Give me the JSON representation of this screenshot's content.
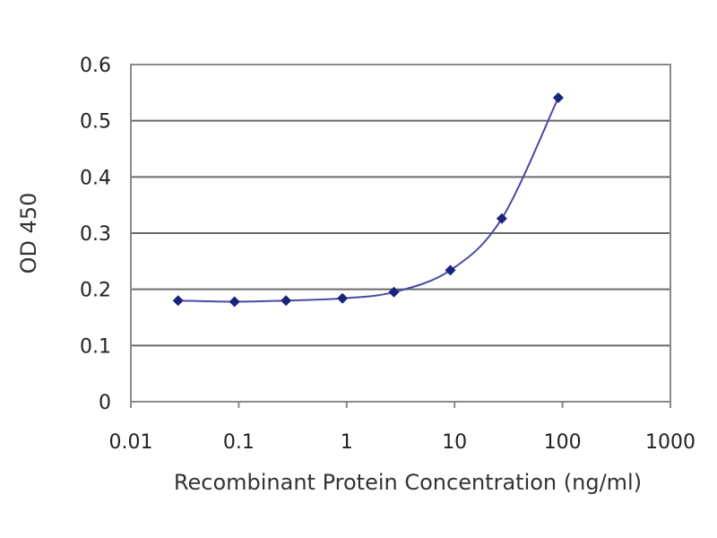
{
  "chart_data": {
    "type": "line",
    "title": "",
    "xlabel": "Recombinant Protein Concentration (ng/ml)",
    "ylabel": "OD 450",
    "x_scale": "log",
    "xlim": [
      0.01,
      1000
    ],
    "ylim": [
      0,
      0.6
    ],
    "x_ticks": [
      "0.01",
      "0.1",
      "1",
      "10",
      "100",
      "1000"
    ],
    "y_ticks": [
      "0",
      "0.1",
      "0.2",
      "0.3",
      "0.4",
      "0.5",
      "0.6"
    ],
    "grid": "horizontal",
    "legend": "none",
    "series": [
      {
        "x": [
          0.0274,
          0.0914,
          0.274,
          0.914,
          2.74,
          9.14,
          27.4,
          91.4
        ],
        "y": [
          0.18,
          0.178,
          0.18,
          0.184,
          0.195,
          0.234,
          0.326,
          0.541
        ]
      }
    ],
    "colors": {
      "series": "#1a237e",
      "line": "#4a4aa0",
      "plot_bg": "#ffffff",
      "grid": "#6a6a6a",
      "frame": "#8a8a8a"
    }
  }
}
